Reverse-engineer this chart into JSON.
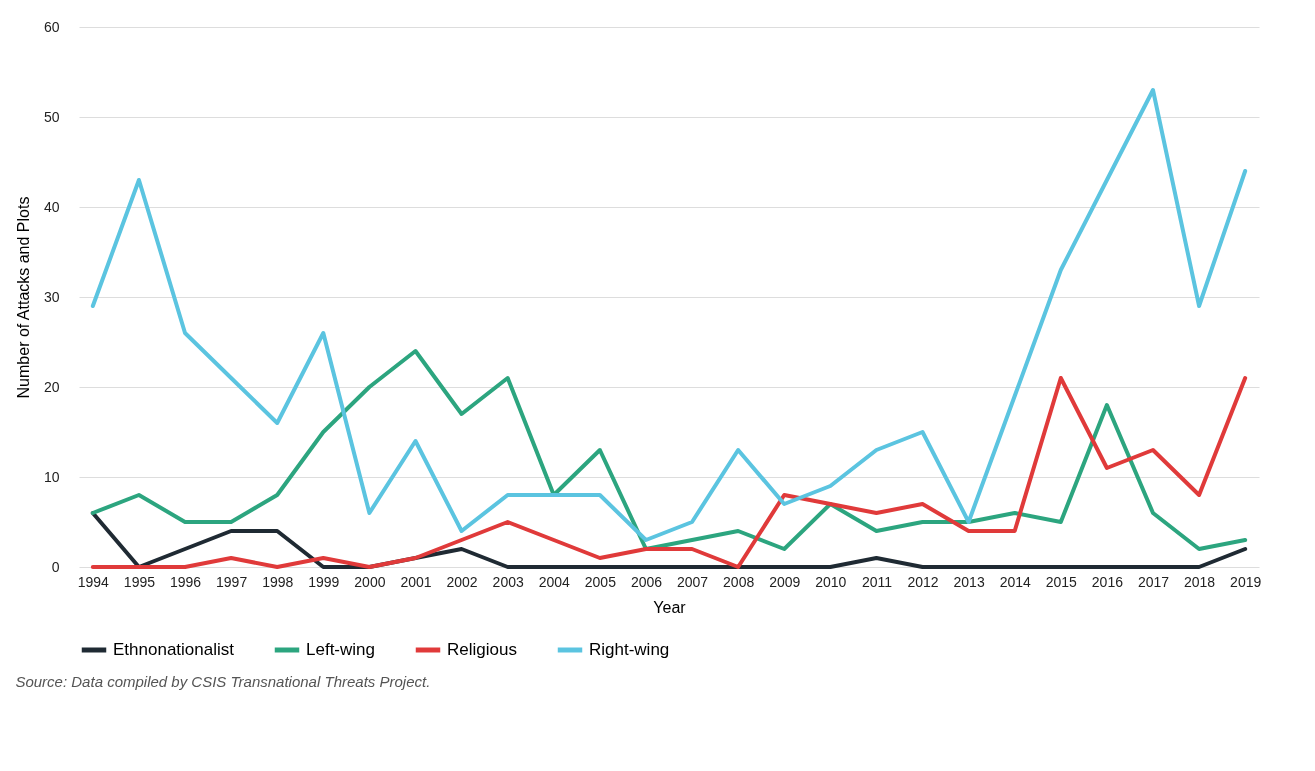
{
  "chart_data": {
    "type": "line",
    "xlabel": "Year",
    "ylabel": "Number of Attacks and Plots",
    "categories": [
      "1994",
      "1995",
      "1996",
      "1997",
      "1998",
      "1999",
      "2000",
      "2001",
      "2002",
      "2003",
      "2004",
      "2005",
      "2006",
      "2007",
      "2008",
      "2009",
      "2010",
      "2011",
      "2012",
      "2013",
      "2014",
      "2015",
      "2016",
      "2017",
      "2018",
      "2019"
    ],
    "series": [
      {
        "name": "Ethnonationalist",
        "color": "#1f2a33",
        "values": [
          6,
          0,
          2,
          4,
          4,
          0,
          0,
          1,
          2,
          0,
          0,
          0,
          0,
          0,
          0,
          0,
          0,
          1,
          0,
          0,
          0,
          0,
          0,
          0,
          0,
          2
        ]
      },
      {
        "name": "Left-wing",
        "color": "#2ca57f",
        "values": [
          6,
          8,
          5,
          5,
          8,
          15,
          20,
          24,
          17,
          21,
          8,
          13,
          2,
          3,
          4,
          2,
          7,
          4,
          5,
          5,
          6,
          5,
          18,
          6,
          2,
          3
        ]
      },
      {
        "name": "Religious",
        "color": "#e03a3a",
        "values": [
          0,
          0,
          0,
          1,
          0,
          1,
          0,
          1,
          3,
          5,
          3,
          1,
          2,
          2,
          0,
          8,
          7,
          6,
          7,
          4,
          4,
          21,
          11,
          13,
          8,
          21
        ]
      },
      {
        "name": "Right-wing",
        "color": "#5bc4e0",
        "values": [
          29,
          43,
          26,
          21,
          16,
          26,
          6,
          14,
          4,
          8,
          8,
          8,
          3,
          5,
          13,
          7,
          9,
          13,
          15,
          5,
          19,
          33,
          43,
          53,
          29,
          44
        ]
      }
    ],
    "ylim": [
      0,
      60
    ],
    "yticks": [
      0,
      10,
      20,
      30,
      40,
      50,
      60
    ],
    "grid": "y",
    "legend": "bottom",
    "marker": "none",
    "line_style": "solid",
    "annotations": [
      "Source: Data compiled by CSIS Transnational Threats Project."
    ]
  }
}
